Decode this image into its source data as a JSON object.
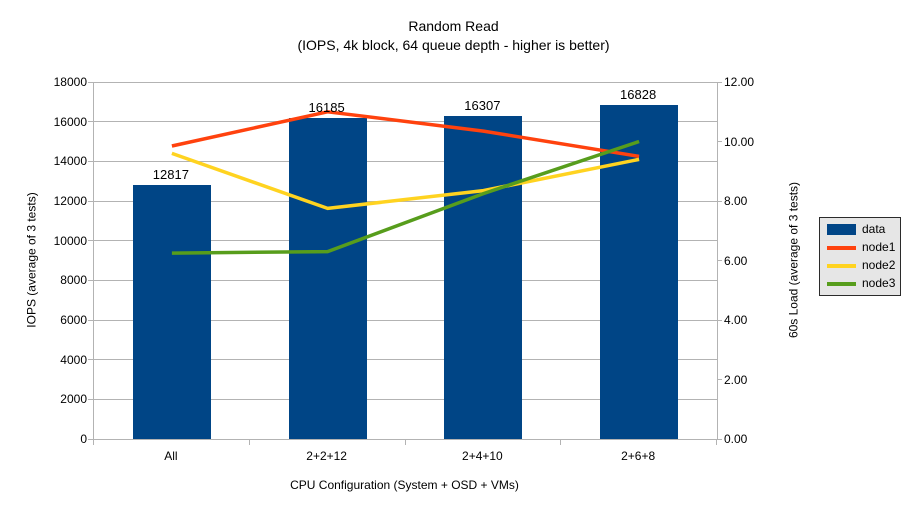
{
  "title": "Random Read",
  "subtitle": "(IOPS, 4k block, 64 queue depth - higher is better)",
  "chart_data": {
    "type": "bar",
    "categories": [
      "All",
      "2+2+12",
      "2+4+10",
      "2+6+8"
    ],
    "bar_series": {
      "name": "data",
      "axis": "left",
      "values": [
        12817,
        16185,
        16307,
        16828
      ],
      "labels": [
        "12817",
        "16185",
        "16307",
        "16828"
      ],
      "color": "#004586"
    },
    "line_series": [
      {
        "name": "node1",
        "axis": "right",
        "color": "#ff420e",
        "values": [
          9.85,
          11.0,
          10.35,
          9.5
        ]
      },
      {
        "name": "node2",
        "axis": "right",
        "color": "#ffd320",
        "values": [
          9.6,
          7.75,
          8.35,
          9.4
        ]
      },
      {
        "name": "node3",
        "axis": "right",
        "color": "#579d1c",
        "values": [
          6.25,
          6.3,
          8.25,
          10.0
        ]
      }
    ],
    "xlabel": "CPU Configuration (System + OSD + VMs)",
    "ylabel_left": "IOPS (average of 3 tests)",
    "ylabel_right": "60s Load (average of 3 tests)",
    "ylim_left": [
      0,
      18000
    ],
    "ytick_step_left": 2000,
    "ylim_right": [
      0,
      12
    ],
    "ytick_step_right": 2,
    "right_tick_decimals": 2,
    "grid": true,
    "legend_position": "right",
    "legend": [
      "data",
      "node1",
      "node2",
      "node3"
    ]
  },
  "colors": {
    "bar": "#004586",
    "node1": "#ff420e",
    "node2": "#ffd320",
    "node3": "#579d1c",
    "gridline": "#b3b3b3",
    "legend_bg": "#e6e6e6",
    "legend_border": "#2b2b2b",
    "text": "#000000",
    "background": "#ffffff"
  }
}
